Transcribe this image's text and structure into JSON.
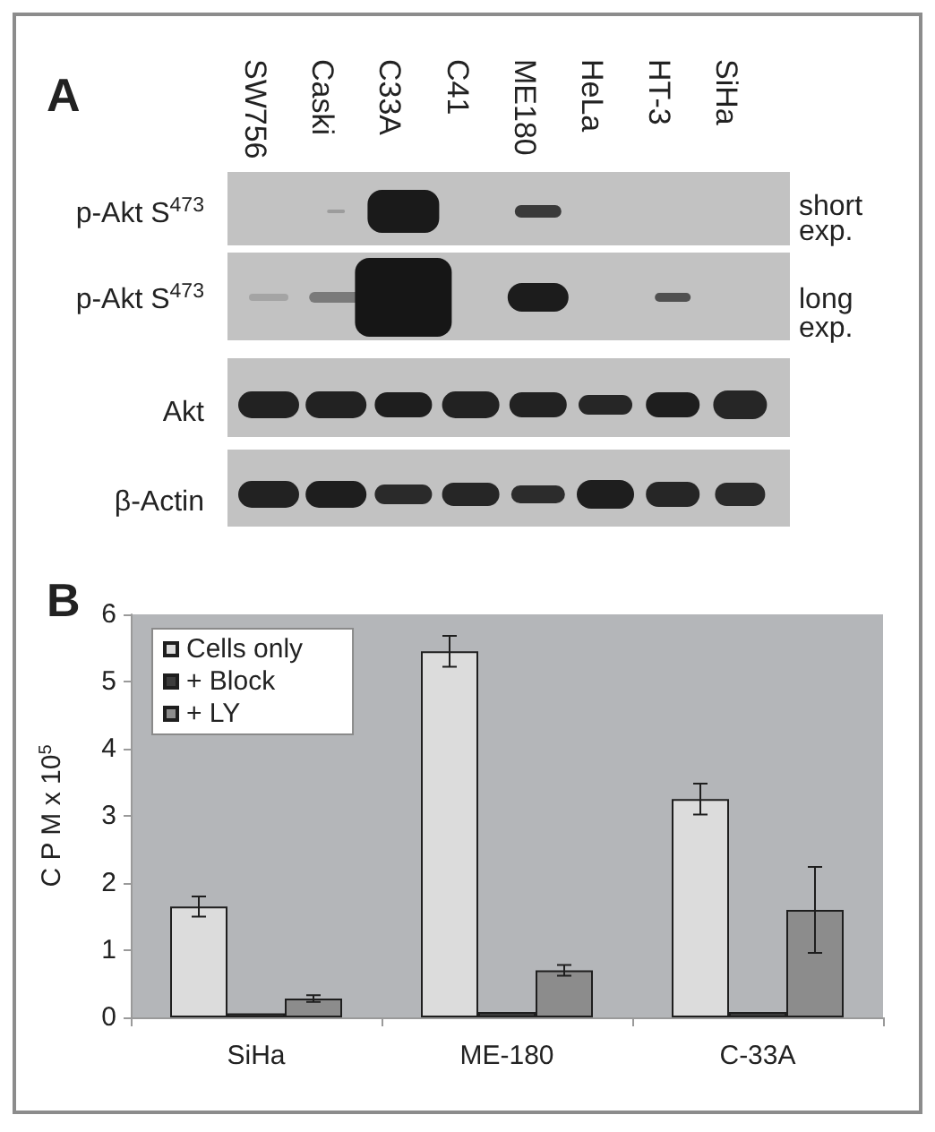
{
  "chart_data": {
    "type": "bar",
    "ylabel": "C P M x 10$^{5}$",
    "categories": [
      "SiHa",
      "ME-180",
      "C-33A"
    ],
    "series": [
      {
        "name": "Cells only",
        "color": "#dcdcdc",
        "values": [
          1.65,
          5.45,
          3.25
        ],
        "errors": [
          0.15,
          0.23,
          0.23
        ]
      },
      {
        "name": "+ Block",
        "color": "#3c3c3c",
        "values": [
          0.06,
          0.08,
          0.08
        ]
      },
      {
        "name": "+ LY",
        "color": "#8c8c8c",
        "values": [
          0.28,
          0.7,
          1.6
        ],
        "errors": [
          0.05,
          0.08,
          0.64
        ]
      }
    ],
    "ylim": [
      0,
      6
    ],
    "yticks": [
      0,
      1,
      2,
      3,
      4,
      5,
      6
    ],
    "legend": "top left",
    "annotations": [
      "A",
      "SW756",
      "Caski",
      "C33A",
      "C41",
      "ME180",
      "HeLa",
      "HT-3",
      "SiHa",
      "p-Akt S$^{473}$",
      "p-Akt S$^{473}$",
      "Akt",
      "β-Actin",
      "short exp.",
      "long exp.",
      "B"
    ]
  }
}
